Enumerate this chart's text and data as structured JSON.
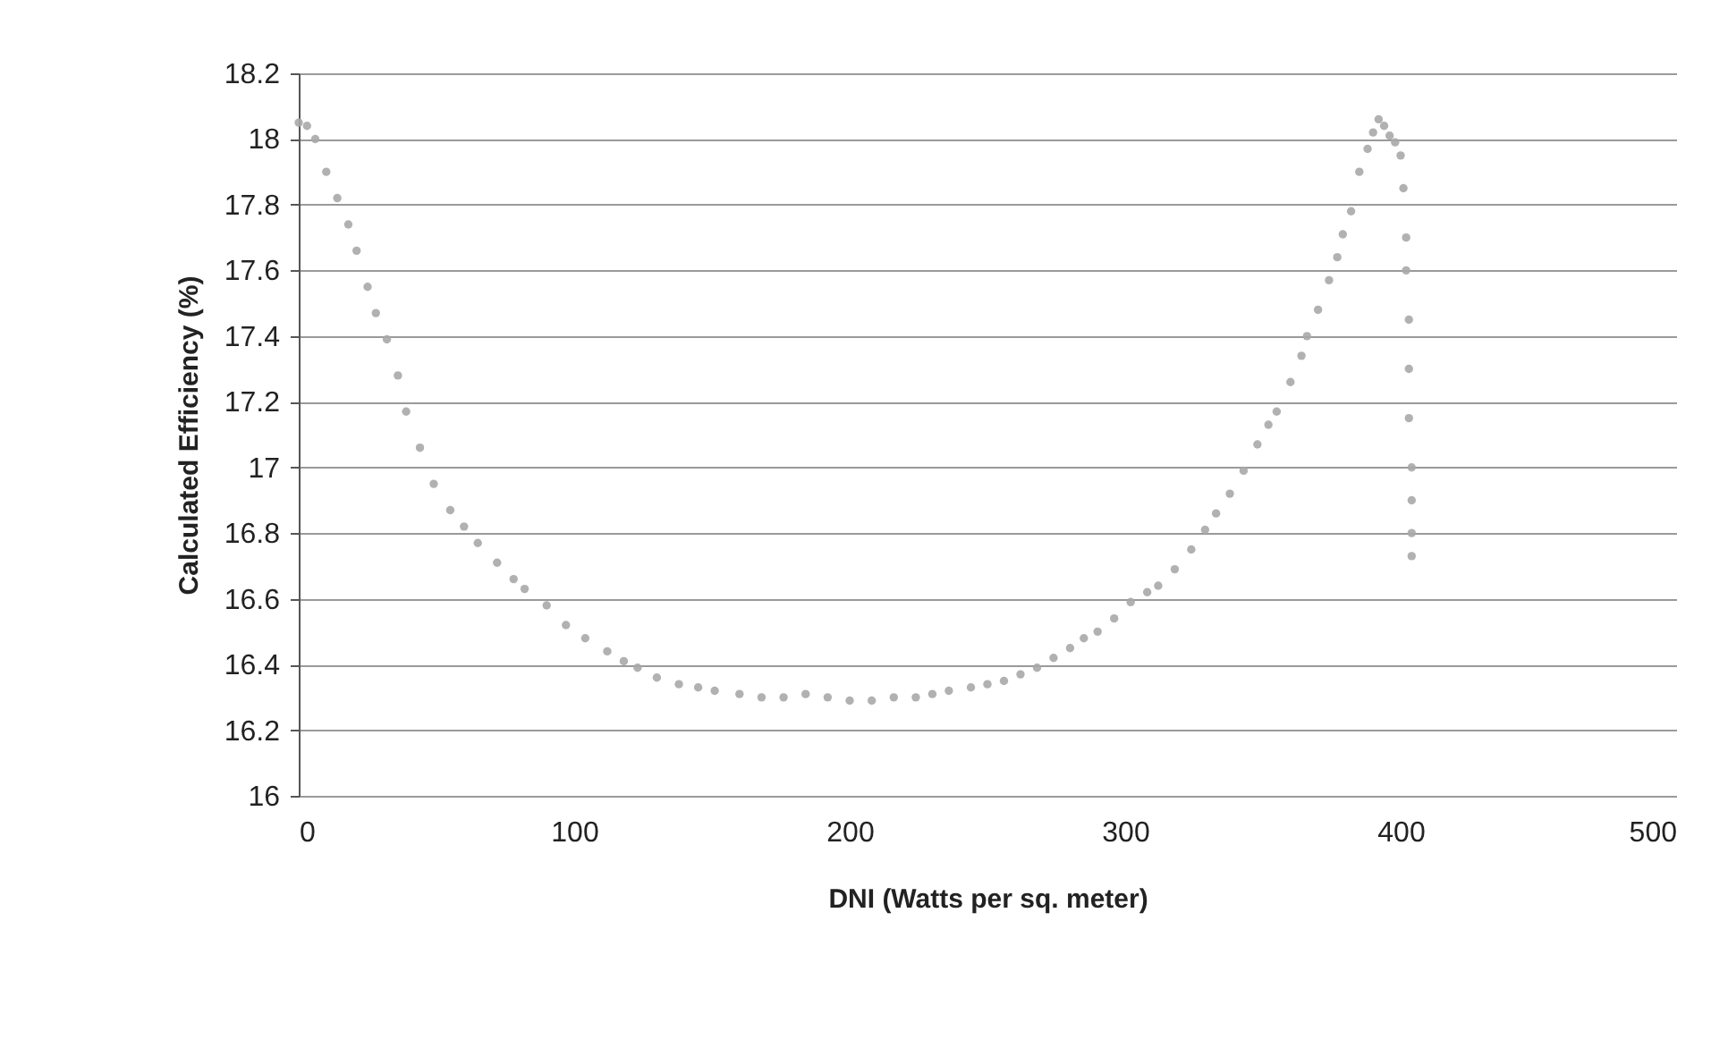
{
  "chart_data": {
    "type": "scatter",
    "xlabel": "DNI (Watts per sq. meter)",
    "ylabel": "Calculated Efficiency (%)",
    "xlim": [
      0,
      500
    ],
    "xticks": [
      0,
      100,
      200,
      300,
      400,
      500
    ],
    "ylim": [
      16,
      18.2
    ],
    "yticks": [
      16,
      16.2,
      16.4,
      16.6,
      16.8,
      17,
      17.2,
      17.4,
      17.6,
      17.8,
      18,
      18.2
    ],
    "grid": "y",
    "marker": "circle",
    "series": [
      {
        "color": "#a8a8a8",
        "x": [
          0,
          3,
          6,
          10,
          14,
          18,
          21,
          25,
          28,
          32,
          36,
          39,
          44,
          49,
          55,
          60,
          65,
          72,
          78,
          82,
          90,
          97,
          104,
          112,
          118,
          123,
          130,
          138,
          145,
          151,
          160,
          168,
          176,
          184,
          192,
          200,
          208,
          216,
          224,
          230,
          236,
          244,
          250,
          256,
          262,
          268,
          274,
          280,
          285,
          290,
          296,
          302,
          308,
          312,
          318,
          324,
          329,
          333,
          338,
          343,
          348,
          352,
          355,
          360,
          364,
          366,
          370,
          374,
          377,
          379,
          382,
          385,
          388,
          390,
          392,
          394,
          396,
          398,
          400,
          401,
          402,
          402,
          403,
          403,
          403,
          404,
          404,
          404,
          404
        ],
        "values": [
          18.05,
          18.04,
          18.0,
          17.9,
          17.82,
          17.74,
          17.66,
          17.55,
          17.47,
          17.39,
          17.28,
          17.17,
          17.06,
          16.95,
          16.87,
          16.82,
          16.77,
          16.71,
          16.66,
          16.63,
          16.58,
          16.52,
          16.48,
          16.44,
          16.41,
          16.39,
          16.36,
          16.34,
          16.33,
          16.32,
          16.31,
          16.3,
          16.3,
          16.31,
          16.3,
          16.29,
          16.29,
          16.3,
          16.3,
          16.31,
          16.32,
          16.33,
          16.34,
          16.35,
          16.37,
          16.39,
          16.42,
          16.45,
          16.48,
          16.5,
          16.54,
          16.59,
          16.62,
          16.64,
          16.69,
          16.75,
          16.81,
          16.86,
          16.92,
          16.99,
          17.07,
          17.13,
          17.17,
          17.26,
          17.34,
          17.4,
          17.48,
          17.57,
          17.64,
          17.71,
          17.78,
          17.9,
          17.97,
          18.02,
          18.06,
          18.04,
          18.01,
          17.99,
          17.95,
          17.85,
          17.7,
          17.6,
          17.45,
          17.3,
          17.15,
          17.0,
          16.9,
          16.8,
          16.73
        ]
      }
    ]
  }
}
